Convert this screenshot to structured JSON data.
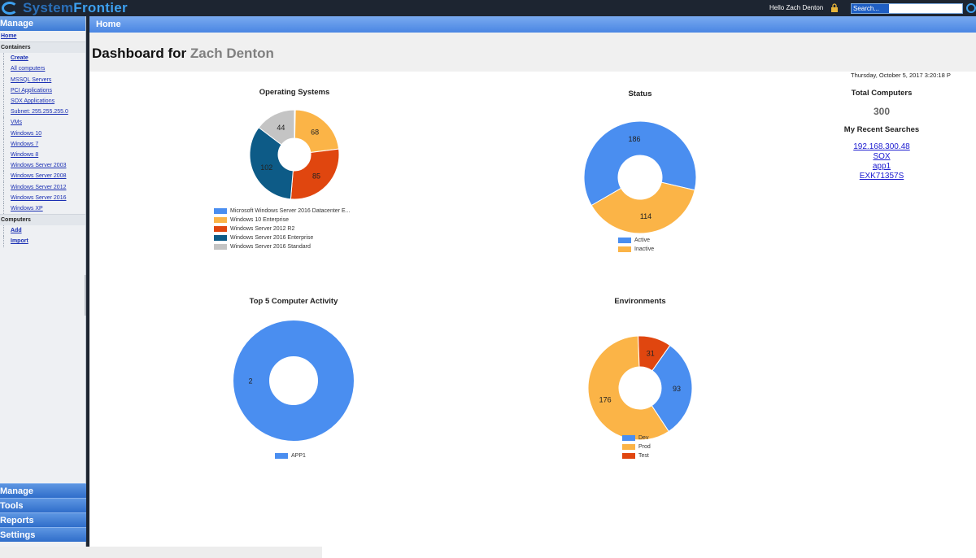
{
  "app": {
    "logo_text_a": "System",
    "logo_text_b": "Frontier",
    "greeting": "Hello Zach Denton",
    "search_placeholder": "Search..."
  },
  "sidebar": {
    "manage_label": "Manage",
    "home_label": "Home",
    "containers_label": "Containers",
    "container_links": [
      "Create",
      "All computers",
      "MSSQL Servers",
      "PCI Applications",
      "SOX Applications",
      "Subnet: 255.255.255.0",
      "VMs",
      "Windows 10",
      "Windows 7",
      "Windows 8",
      "Windows Server 2003",
      "Windows Server 2008",
      "Windows Server 2012",
      "Windows Server 2016",
      "Windows XP"
    ],
    "computers_label": "Computers",
    "computer_links": [
      "Add",
      "Import"
    ],
    "bottom_buttons": [
      "Manage",
      "Tools",
      "Reports",
      "Settings"
    ]
  },
  "main": {
    "breadcrumb": "Home",
    "title_prefix": "Dashboard for",
    "title_user": "Zach Denton",
    "date": "Thursday, October 5, 2017 3:20:18 P"
  },
  "colors": {
    "blue": "#4a8ef0",
    "orange": "#fbb447",
    "red": "#e0460f",
    "navy": "#0d5b87",
    "gray": "#c4c4c4"
  },
  "summary": {
    "total_computers_label": "Total Computers",
    "total_computers": "300",
    "recent_searches_label": "My Recent Searches",
    "recent_searches": [
      "192.168.300.48",
      "SOX",
      "app1",
      "EXK71357S"
    ]
  },
  "chart_data": [
    {
      "type": "pie",
      "title": "Operating Systems",
      "categories": [
        "Microsoft Windows Server 2016 Datacenter E...",
        "Windows 10 Enterprise",
        "Windows Server 2012 R2",
        "Windows Server 2016 Enterprise",
        "Windows Server 2016 Standard"
      ],
      "values": [
        1,
        68,
        85,
        102,
        44
      ],
      "colors": [
        "#4a8ef0",
        "#fbb447",
        "#e0460f",
        "#0d5b87",
        "#c4c4c4"
      ]
    },
    {
      "type": "pie",
      "title": "Status",
      "categories": [
        "Active",
        "Inactive"
      ],
      "values": [
        186,
        114
      ],
      "colors": [
        "#4a8ef0",
        "#fbb447"
      ]
    },
    {
      "type": "pie",
      "title": "Top 5 Computer Activity",
      "categories": [
        "APP1"
      ],
      "values": [
        2
      ],
      "colors": [
        "#4a8ef0"
      ]
    },
    {
      "type": "pie",
      "title": "Environments",
      "categories": [
        "Dev",
        "Prod",
        "Test"
      ],
      "values": [
        93,
        176,
        31
      ],
      "colors": [
        "#4a8ef0",
        "#fbb447",
        "#e0460f"
      ]
    }
  ]
}
